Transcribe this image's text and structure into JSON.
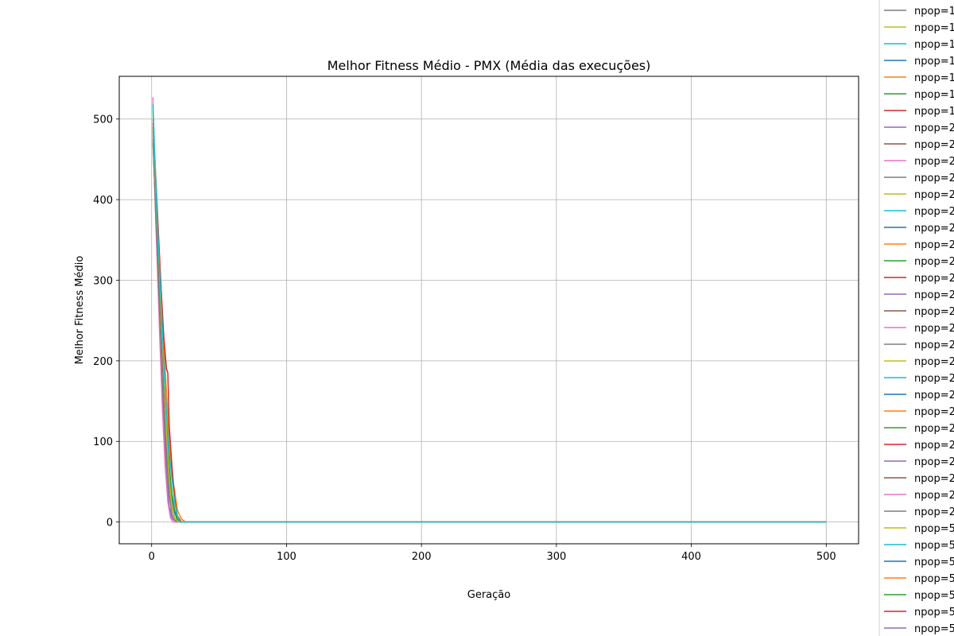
{
  "chart_data": {
    "type": "line",
    "title": "Melhor Fitness Médio - PMX (Média das execuções)",
    "xlabel": "Geração",
    "ylabel": "Melhor Fitness Médio",
    "xlim": [
      -24,
      524
    ],
    "ylim": [
      -27,
      553
    ],
    "xticks": [
      0,
      100,
      200,
      300,
      400,
      500
    ],
    "yticks": [
      0,
      100,
      200,
      300,
      400,
      500
    ],
    "grid": true,
    "legend_position": "right, clipped at image edge",
    "legend_visible_text": "npop=",
    "colors": [
      "#7f7f7f",
      "#bcbd22",
      "#17becf",
      "#1f77b4",
      "#ff7f0e",
      "#2ca02c",
      "#d62728",
      "#9467bd",
      "#8c564b",
      "#e377c2"
    ],
    "legend_entries": [
      {
        "label": "npop=1",
        "color": "#7f7f7f"
      },
      {
        "label": "npop=1",
        "color": "#bcbd22"
      },
      {
        "label": "npop=1",
        "color": "#17becf"
      },
      {
        "label": "npop=1",
        "color": "#1f77b4"
      },
      {
        "label": "npop=1",
        "color": "#ff7f0e"
      },
      {
        "label": "npop=1",
        "color": "#2ca02c"
      },
      {
        "label": "npop=1",
        "color": "#d62728"
      },
      {
        "label": "npop=2",
        "color": "#9467bd"
      },
      {
        "label": "npop=2",
        "color": "#8c564b"
      },
      {
        "label": "npop=2",
        "color": "#e377c2"
      },
      {
        "label": "npop=2",
        "color": "#7f7f7f"
      },
      {
        "label": "npop=2",
        "color": "#bcbd22"
      },
      {
        "label": "npop=2",
        "color": "#17becf"
      },
      {
        "label": "npop=2",
        "color": "#1f77b4"
      },
      {
        "label": "npop=2",
        "color": "#ff7f0e"
      },
      {
        "label": "npop=2",
        "color": "#2ca02c"
      },
      {
        "label": "npop=2",
        "color": "#d62728"
      },
      {
        "label": "npop=2",
        "color": "#9467bd"
      },
      {
        "label": "npop=2",
        "color": "#8c564b"
      },
      {
        "label": "npop=2",
        "color": "#e377c2"
      },
      {
        "label": "npop=2",
        "color": "#7f7f7f"
      },
      {
        "label": "npop=2",
        "color": "#bcbd22"
      },
      {
        "label": "npop=2",
        "color": "#17becf"
      },
      {
        "label": "npop=2",
        "color": "#1f77b4"
      },
      {
        "label": "npop=2",
        "color": "#ff7f0e"
      },
      {
        "label": "npop=2",
        "color": "#2ca02c"
      },
      {
        "label": "npop=2",
        "color": "#d62728"
      },
      {
        "label": "npop=2",
        "color": "#9467bd"
      },
      {
        "label": "npop=2",
        "color": "#8c564b"
      },
      {
        "label": "npop=2",
        "color": "#e377c2"
      },
      {
        "label": "npop=2",
        "color": "#7f7f7f"
      },
      {
        "label": "npop=5",
        "color": "#bcbd22"
      },
      {
        "label": "npop=5",
        "color": "#17becf"
      },
      {
        "label": "npop=5",
        "color": "#1f77b4"
      },
      {
        "label": "npop=5",
        "color": "#ff7f0e"
      },
      {
        "label": "npop=5",
        "color": "#2ca02c"
      },
      {
        "label": "npop=5",
        "color": "#d62728"
      },
      {
        "label": "npop=5",
        "color": "#9467bd"
      }
    ],
    "series": [
      {
        "color": "#1f77b4",
        "x": [
          1,
          3,
          5,
          7,
          9,
          11,
          13,
          15,
          17,
          19,
          22,
          500
        ],
        "y": [
          490,
          400,
          330,
          260,
          180,
          110,
          60,
          30,
          12,
          3,
          0,
          0
        ]
      },
      {
        "color": "#ff7f0e",
        "x": [
          1,
          3,
          5,
          7,
          9,
          11,
          13,
          15,
          17,
          19,
          22,
          25,
          500
        ],
        "y": [
          500,
          420,
          350,
          290,
          220,
          160,
          100,
          55,
          40,
          15,
          4,
          0,
          0
        ]
      },
      {
        "color": "#2ca02c",
        "x": [
          1,
          3,
          5,
          7,
          9,
          11,
          13,
          15,
          17,
          19,
          22,
          500
        ],
        "y": [
          485,
          405,
          335,
          265,
          190,
          120,
          70,
          35,
          15,
          4,
          0,
          0
        ]
      },
      {
        "color": "#d62728",
        "x": [
          1,
          3,
          5,
          7,
          9,
          11,
          12,
          13,
          15,
          17,
          19,
          22,
          500
        ],
        "y": [
          495,
          430,
          360,
          290,
          230,
          190,
          185,
          120,
          70,
          30,
          8,
          0,
          0
        ]
      },
      {
        "color": "#9467bd",
        "x": [
          1,
          3,
          5,
          7,
          9,
          11,
          13,
          15,
          18,
          500
        ],
        "y": [
          480,
          380,
          290,
          200,
          120,
          60,
          20,
          5,
          0,
          0
        ]
      },
      {
        "color": "#8c564b",
        "x": [
          1,
          3,
          5,
          7,
          9,
          11,
          13,
          15,
          17,
          20,
          500
        ],
        "y": [
          470,
          390,
          320,
          250,
          170,
          100,
          50,
          20,
          5,
          0,
          0
        ]
      },
      {
        "color": "#e377c2",
        "x": [
          1,
          2,
          4,
          6,
          8,
          10,
          12,
          14,
          16,
          500
        ],
        "y": [
          527,
          430,
          330,
          230,
          140,
          70,
          25,
          5,
          0,
          0
        ]
      },
      {
        "color": "#7f7f7f",
        "x": [
          1,
          3,
          5,
          7,
          9,
          11,
          13,
          15,
          17,
          20,
          500
        ],
        "y": [
          475,
          385,
          300,
          215,
          140,
          80,
          35,
          10,
          2,
          0,
          0
        ]
      },
      {
        "color": "#bcbd22",
        "x": [
          1,
          3,
          5,
          7,
          9,
          11,
          13,
          15,
          17,
          20,
          500
        ],
        "y": [
          510,
          415,
          340,
          260,
          185,
          110,
          55,
          20,
          5,
          0,
          0
        ]
      },
      {
        "color": "#17becf",
        "x": [
          1,
          3,
          5,
          7,
          9,
          11,
          13,
          15,
          17,
          19,
          21,
          500
        ],
        "y": [
          518,
          425,
          345,
          275,
          200,
          135,
          85,
          55,
          25,
          8,
          0,
          0
        ]
      }
    ]
  }
}
